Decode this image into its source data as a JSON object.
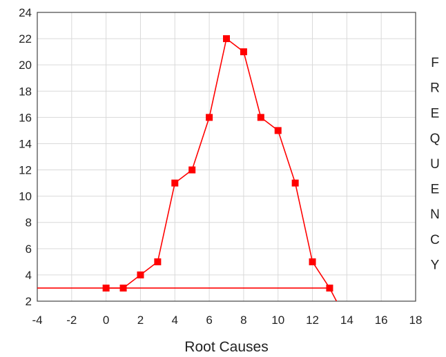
{
  "chart_data": {
    "type": "line",
    "title": "",
    "xlabel": "Root Causes",
    "ylabel": "FREQUENCY",
    "xlim": [
      -4,
      18
    ],
    "ylim": [
      2,
      24
    ],
    "x_ticks": [
      -4,
      -2,
      0,
      2,
      4,
      6,
      8,
      10,
      12,
      14,
      16,
      18
    ],
    "y_ticks": [
      2,
      4,
      6,
      8,
      10,
      12,
      14,
      16,
      18,
      20,
      22,
      24
    ],
    "grid": true,
    "legend": "none",
    "series": [
      {
        "color": "#ff0000",
        "marker": "square",
        "x": [
          0,
          1,
          2,
          3,
          4,
          5,
          6,
          7,
          8,
          9,
          10,
          11,
          12,
          13
        ],
        "y": [
          3,
          3,
          4,
          5,
          11,
          12,
          16,
          22,
          21,
          16,
          15,
          11,
          5,
          3
        ]
      }
    ],
    "trend_line": {
      "color": "#ff0000",
      "x": [
        -4,
        0,
        13,
        13.4
      ],
      "y": [
        3,
        3,
        3,
        2
      ]
    }
  }
}
